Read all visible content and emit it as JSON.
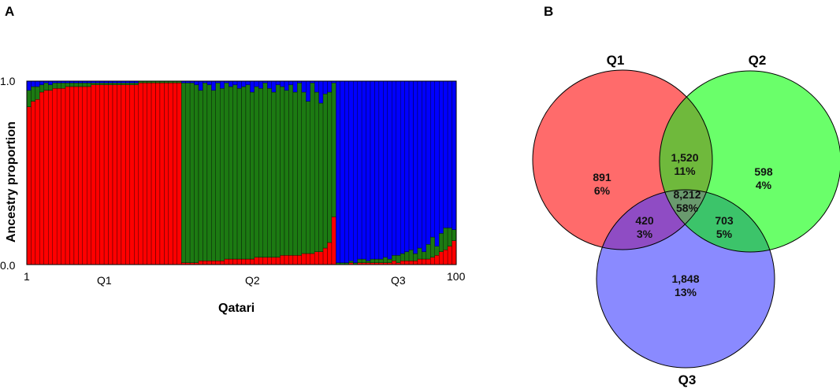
{
  "panel_a": {
    "label": "A"
  },
  "panel_b": {
    "label": "B"
  },
  "chart_data": [
    {
      "type": "bar",
      "stacked": true,
      "ylabel": "Ancestry proportion",
      "xlabel": "Qatari",
      "y_ticks": [
        "1.0",
        "0.0"
      ],
      "x_ticks": [
        "1",
        "100"
      ],
      "ylim": [
        0,
        1
      ],
      "individuals": 100,
      "group_labels": [
        "Q1",
        "Q2",
        "Q3"
      ],
      "components": [
        {
          "key": "Q1",
          "color": "#ff0000"
        },
        {
          "key": "Q2",
          "color": "#1c7a12"
        },
        {
          "key": "Q3",
          "color": "#0000ff"
        }
      ],
      "groups": [
        {
          "name": "Q1",
          "count": 36,
          "q1": [
            0.86,
            0.89,
            0.9,
            0.94,
            0.95,
            0.95,
            0.96,
            0.96,
            0.96,
            0.97,
            0.97,
            0.97,
            0.97,
            0.97,
            0.97,
            0.98,
            0.98,
            0.98,
            0.98,
            0.98,
            0.98,
            0.98,
            0.98,
            0.98,
            0.98,
            0.98,
            0.99,
            0.99,
            0.99,
            0.99,
            0.99,
            0.99,
            0.99,
            0.99,
            0.99,
            0.99
          ],
          "q2": [
            0.09,
            0.08,
            0.07,
            0.04,
            0.04,
            0.03,
            0.03,
            0.03,
            0.03,
            0.02,
            0.02,
            0.02,
            0.02,
            0.02,
            0.02,
            0.01,
            0.01,
            0.01,
            0.01,
            0.01,
            0.01,
            0.01,
            0.01,
            0.01,
            0.01,
            0.01,
            0.01,
            0.01,
            0.01,
            0.01,
            0.01,
            0.01,
            0.01,
            0.01,
            0.01,
            0.01
          ]
        },
        {
          "name": "Q2",
          "count": 36,
          "q1": [
            0.01,
            0.01,
            0.01,
            0.01,
            0.02,
            0.02,
            0.02,
            0.02,
            0.02,
            0.02,
            0.03,
            0.03,
            0.03,
            0.03,
            0.03,
            0.03,
            0.03,
            0.04,
            0.04,
            0.04,
            0.04,
            0.04,
            0.04,
            0.05,
            0.05,
            0.05,
            0.05,
            0.05,
            0.06,
            0.06,
            0.06,
            0.07,
            0.07,
            0.09,
            0.12,
            0.26
          ],
          "q2": [
            0.98,
            0.98,
            0.98,
            0.97,
            0.93,
            0.97,
            0.96,
            0.93,
            0.97,
            0.94,
            0.96,
            0.94,
            0.95,
            0.93,
            0.94,
            0.95,
            0.91,
            0.93,
            0.92,
            0.95,
            0.92,
            0.9,
            0.94,
            0.92,
            0.9,
            0.93,
            0.89,
            0.94,
            0.88,
            0.83,
            0.93,
            0.87,
            0.81,
            0.84,
            0.82,
            0.73
          ]
        },
        {
          "name": "Q3",
          "count": 28,
          "q1": [
            0.0,
            0.0,
            0.0,
            0.01,
            0.0,
            0.01,
            0.01,
            0.01,
            0.01,
            0.01,
            0.01,
            0.01,
            0.01,
            0.02,
            0.01,
            0.02,
            0.02,
            0.02,
            0.02,
            0.03,
            0.03,
            0.03,
            0.04,
            0.05,
            0.07,
            0.08,
            0.1,
            0.13
          ],
          "q2": [
            0.01,
            0.01,
            0.01,
            0.01,
            0.01,
            0.02,
            0.02,
            0.01,
            0.02,
            0.02,
            0.02,
            0.03,
            0.02,
            0.03,
            0.04,
            0.04,
            0.05,
            0.06,
            0.04,
            0.06,
            0.04,
            0.08,
            0.11,
            0.05,
            0.1,
            0.12,
            0.1,
            0.06
          ]
        }
      ]
    },
    {
      "type": "venn",
      "sets": [
        {
          "name": "Q1",
          "color": "#ff6b6b"
        },
        {
          "name": "Q2",
          "color": "#6aff6a"
        },
        {
          "name": "Q3",
          "color": "#8a8aff"
        }
      ],
      "regions": [
        {
          "sets": [
            "Q1"
          ],
          "count": "891",
          "percent": "6%"
        },
        {
          "sets": [
            "Q2"
          ],
          "count": "598",
          "percent": "4%"
        },
        {
          "sets": [
            "Q3"
          ],
          "count": "1,848",
          "percent": "13%"
        },
        {
          "sets": [
            "Q1",
            "Q2"
          ],
          "count": "1,520",
          "percent": "11%"
        },
        {
          "sets": [
            "Q1",
            "Q3"
          ],
          "count": "420",
          "percent": "3%"
        },
        {
          "sets": [
            "Q2",
            "Q3"
          ],
          "count": "703",
          "percent": "5%"
        },
        {
          "sets": [
            "Q1",
            "Q2",
            "Q3"
          ],
          "count": "8,212",
          "percent": "58%"
        }
      ]
    }
  ]
}
